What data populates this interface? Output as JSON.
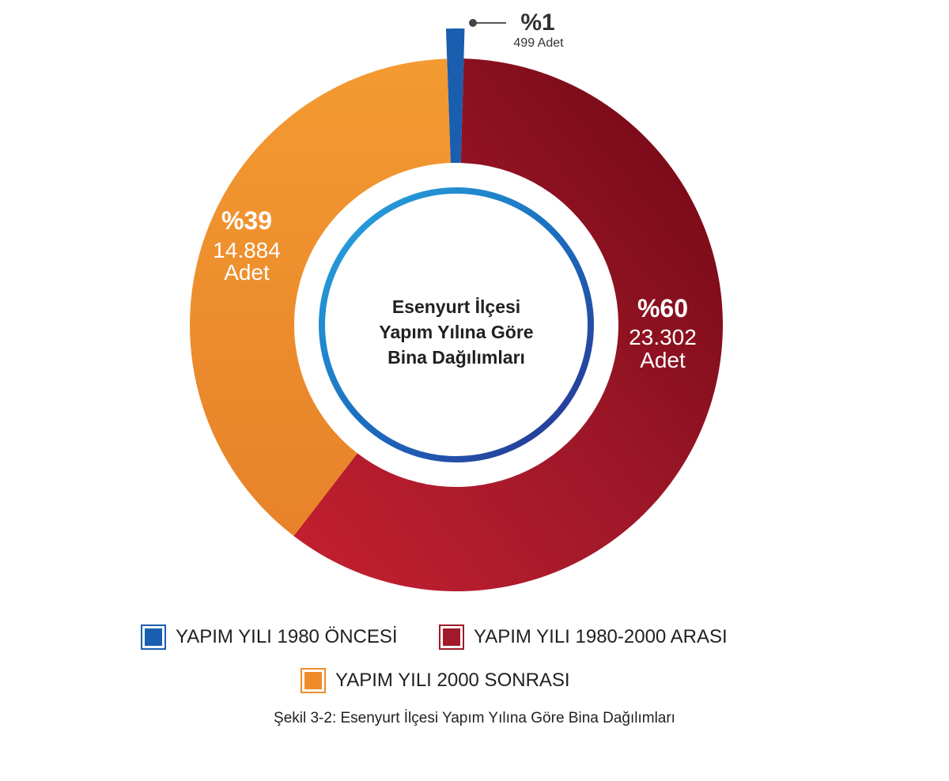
{
  "chart_data": {
    "type": "pie",
    "title": "Esenyurt İlçesi Yapım Yılına Göre Bina Dağılımları",
    "title_lines": [
      "Esenyurt İlçesi",
      "Yapım Yılına Göre",
      "Bina Dağılımları"
    ],
    "slices": [
      {
        "name": "YAPIM YILI 1980 ÖNCESİ",
        "percent_label": "%1",
        "count_label": "499 Adet",
        "percent": 1,
        "count": 499,
        "color": "#1a5eb0"
      },
      {
        "name": "YAPIM YILI 1980-2000 ARASI",
        "percent_label": "%60",
        "count_label": "23.302 Adet",
        "count_lines": [
          "23.302",
          "Adet"
        ],
        "percent": 60,
        "count": 23302,
        "color": "#a11a2b"
      },
      {
        "name": "YAPIM YILI 2000 SONRASI",
        "percent_label": "%39",
        "count_label": "14.884 Adet",
        "count_lines": [
          "14.884",
          "Adet"
        ],
        "percent": 39,
        "count": 14884,
        "color": "#f0982f"
      }
    ],
    "legend_position": "bottom"
  },
  "legend": {
    "items": [
      {
        "label": "YAPIM YILI 1980 ÖNCESİ",
        "color": "#1a5eb0"
      },
      {
        "label": "YAPIM YILI 1980-2000 ARASI",
        "color": "#a11a2b"
      },
      {
        "label": "YAPIM YILI 2000 SONRASI",
        "color": "#ee8c2a"
      }
    ]
  },
  "caption": "Şekil 3-2: Esenyurt İlçesi Yapım Yılına Göre Bina Dağılımları"
}
